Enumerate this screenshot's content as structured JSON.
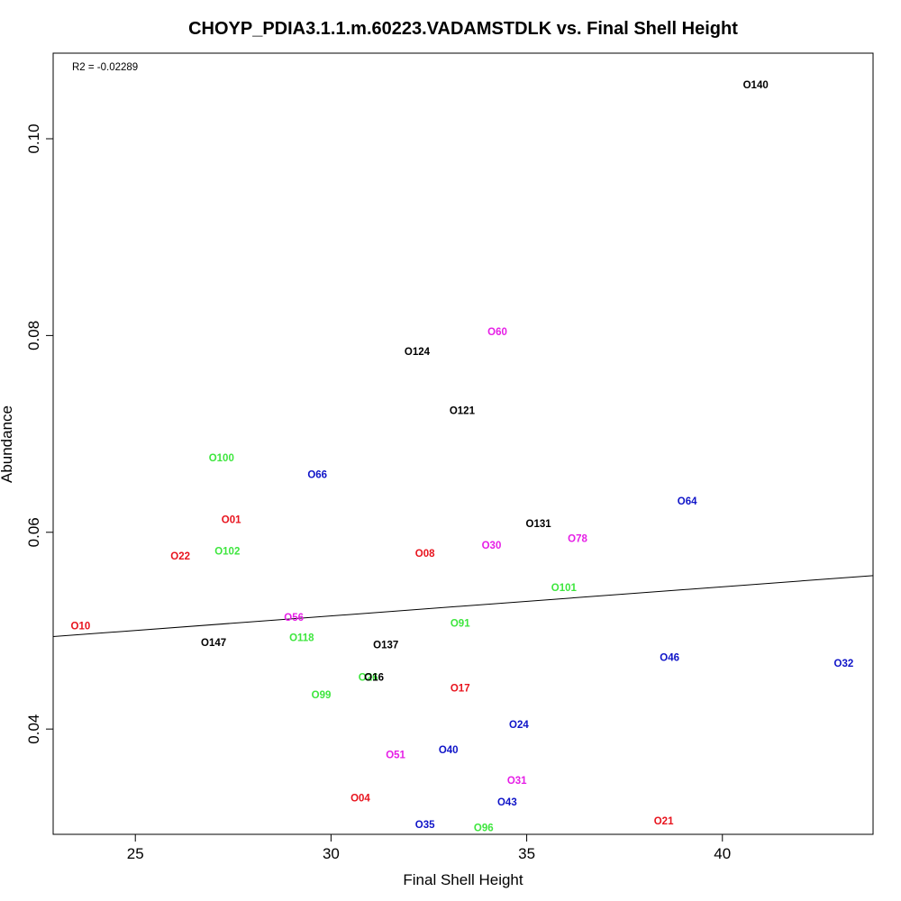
{
  "chart_data": {
    "type": "scatter",
    "title": "CHOYP_PDIA3.1.1.m.60223.VADAMSTDLK vs. Final Shell Height",
    "xlabel": "Final Shell Height",
    "ylabel": "Abundance",
    "xlim": [
      22.9,
      43.85
    ],
    "ylim": [
      0.0293,
      0.1087
    ],
    "xticks": [
      25,
      30,
      35,
      40
    ],
    "yticks": [
      0.04,
      0.06,
      0.08,
      0.1
    ],
    "xtick_labels": [
      "25",
      "30",
      "35",
      "40"
    ],
    "ytick_labels": [
      "0.04",
      "0.06",
      "0.08",
      "0.10"
    ],
    "annotation": "R2 = -0.02289",
    "grid": false,
    "legend": "none",
    "colors": {
      "red": "#e8141e",
      "green": "#3ee63e",
      "blue": "#0f14c8",
      "magenta": "#e61ee6",
      "black": "#000000"
    },
    "regression_line": {
      "x": [
        22.9,
        43.85
      ],
      "y": [
        0.0494,
        0.0556
      ]
    },
    "points": [
      {
        "label": "O140",
        "x": 40.85,
        "y": 0.1054,
        "color": "black"
      },
      {
        "label": "O60",
        "x": 34.25,
        "y": 0.0803,
        "color": "magenta"
      },
      {
        "label": "O124",
        "x": 32.2,
        "y": 0.0783,
        "color": "black"
      },
      {
        "label": "O121",
        "x": 33.35,
        "y": 0.0723,
        "color": "black"
      },
      {
        "label": "O100",
        "x": 27.2,
        "y": 0.0675,
        "color": "green"
      },
      {
        "label": "O66",
        "x": 29.65,
        "y": 0.0658,
        "color": "blue"
      },
      {
        "label": "O64",
        "x": 39.1,
        "y": 0.0631,
        "color": "blue"
      },
      {
        "label": "O01",
        "x": 27.45,
        "y": 0.0612,
        "color": "red"
      },
      {
        "label": "O131",
        "x": 35.3,
        "y": 0.0608,
        "color": "black"
      },
      {
        "label": "O78",
        "x": 36.3,
        "y": 0.0593,
        "color": "magenta"
      },
      {
        "label": "O30",
        "x": 34.1,
        "y": 0.0586,
        "color": "magenta"
      },
      {
        "label": "O102",
        "x": 27.35,
        "y": 0.058,
        "color": "green"
      },
      {
        "label": "O08",
        "x": 32.4,
        "y": 0.0578,
        "color": "red"
      },
      {
        "label": "O22",
        "x": 26.15,
        "y": 0.0575,
        "color": "red"
      },
      {
        "label": "O101",
        "x": 35.95,
        "y": 0.0543,
        "color": "green"
      },
      {
        "label": "O56",
        "x": 29.05,
        "y": 0.0513,
        "color": "magenta"
      },
      {
        "label": "O91",
        "x": 33.3,
        "y": 0.0507,
        "color": "green"
      },
      {
        "label": "O10",
        "x": 23.6,
        "y": 0.0504,
        "color": "red"
      },
      {
        "label": "O118",
        "x": 29.25,
        "y": 0.0492,
        "color": "green"
      },
      {
        "label": "O147",
        "x": 27.0,
        "y": 0.0487,
        "color": "black"
      },
      {
        "label": "O137",
        "x": 31.4,
        "y": 0.0485,
        "color": "black"
      },
      {
        "label": "O46",
        "x": 38.65,
        "y": 0.0472,
        "color": "blue"
      },
      {
        "label": "O32",
        "x": 43.1,
        "y": 0.0466,
        "color": "blue"
      },
      {
        "label": "O26",
        "x": 30.95,
        "y": 0.0452,
        "color": "green"
      },
      {
        "label": "O16",
        "x": 31.1,
        "y": 0.0452,
        "color": "black"
      },
      {
        "label": "O17",
        "x": 33.3,
        "y": 0.0441,
        "color": "red"
      },
      {
        "label": "O99",
        "x": 29.75,
        "y": 0.0434,
        "color": "green"
      },
      {
        "label": "O24",
        "x": 34.8,
        "y": 0.0404,
        "color": "blue"
      },
      {
        "label": "O40",
        "x": 33.0,
        "y": 0.0378,
        "color": "blue"
      },
      {
        "label": "O51",
        "x": 31.65,
        "y": 0.0373,
        "color": "magenta"
      },
      {
        "label": "O31",
        "x": 34.75,
        "y": 0.0347,
        "color": "magenta"
      },
      {
        "label": "O04",
        "x": 30.75,
        "y": 0.0329,
        "color": "red"
      },
      {
        "label": "O43",
        "x": 34.5,
        "y": 0.0325,
        "color": "blue"
      },
      {
        "label": "O21",
        "x": 38.5,
        "y": 0.0306,
        "color": "red"
      },
      {
        "label": "O35",
        "x": 32.4,
        "y": 0.0302,
        "color": "blue"
      },
      {
        "label": "O96",
        "x": 33.9,
        "y": 0.0299,
        "color": "green"
      }
    ]
  }
}
